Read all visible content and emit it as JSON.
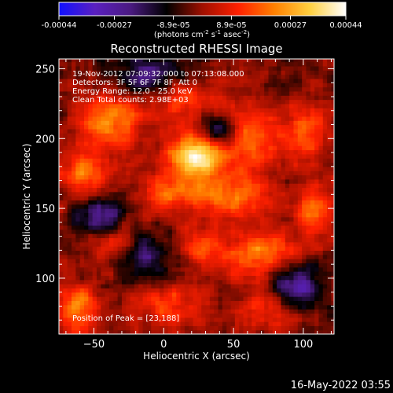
{
  "colorbar": {
    "tick_labels": [
      "-0.00044",
      "-0.00027",
      "-8.9e-05",
      "8.9e-05",
      "0.00027",
      "0.00044"
    ],
    "tick_values": [
      -0.00044,
      -0.00027,
      -8.9e-05,
      8.9e-05,
      0.00027,
      0.00044
    ],
    "range": [
      -0.00044,
      0.00044
    ],
    "unit_base": "(photons cm",
    "unit_exp1": "-2",
    "unit_mid": " s",
    "unit_exp2": "-1",
    "unit_asec": " asec",
    "unit_exp3": "-2",
    "unit_close": ")",
    "colors": [
      "#1010ff",
      "#5a20c0",
      "#4a1a80",
      "#000000",
      "#a01000",
      "#ff2000",
      "#ff8000",
      "#ffd040",
      "#ffffff"
    ]
  },
  "chart_data": {
    "type": "heatmap",
    "title": "Reconstructed RHESSI Image",
    "xlabel": "Heliocentric X (arcsec)",
    "ylabel": "Heliocentric Y (arcsec)",
    "xlim": [
      -75,
      122
    ],
    "ylim": [
      60,
      257
    ],
    "x_ticks": [
      -50,
      0,
      50,
      100
    ],
    "y_ticks": [
      100,
      150,
      200,
      250
    ],
    "x_tick_labels": [
      "−50",
      "0",
      "50",
      "100"
    ],
    "y_tick_labels": [
      "100",
      "150",
      "200",
      "250"
    ],
    "annotations": [
      "19-Nov-2012 07:09:32.000 to 07:13:08.000",
      "Detectors: 3F 5F 6F 7F 8F, Att 0",
      "Energy Range: 12.0 - 25.0 keV",
      "Clean     Total counts: 2.98E+03"
    ],
    "peak_label": "Position of Peak = [23,188]",
    "peak": [
      23,
      188
    ],
    "sources": [
      {
        "x": 23,
        "y": 188,
        "sx": 14,
        "sy": 12,
        "a": 1.0
      },
      {
        "x": 45,
        "y": 158,
        "sx": 20,
        "sy": 10,
        "a": 0.55
      },
      {
        "x": 0,
        "y": 160,
        "sx": 12,
        "sy": 9,
        "a": 0.45
      },
      {
        "x": -40,
        "y": 213,
        "sx": 16,
        "sy": 14,
        "a": 0.6
      },
      {
        "x": -55,
        "y": 175,
        "sx": 12,
        "sy": 10,
        "a": 0.45
      },
      {
        "x": 15,
        "y": 230,
        "sx": 18,
        "sy": 10,
        "a": 0.35
      },
      {
        "x": 60,
        "y": 200,
        "sx": 14,
        "sy": 16,
        "a": 0.5
      },
      {
        "x": 70,
        "y": 118,
        "sx": 18,
        "sy": 12,
        "a": 0.55
      },
      {
        "x": 28,
        "y": 122,
        "sx": 10,
        "sy": 9,
        "a": 0.4
      },
      {
        "x": -62,
        "y": 78,
        "sx": 10,
        "sy": 12,
        "a": 0.55
      },
      {
        "x": 108,
        "y": 148,
        "sx": 10,
        "sy": 12,
        "a": 0.45
      },
      {
        "x": 100,
        "y": 205,
        "sx": 12,
        "sy": 14,
        "a": 0.4
      },
      {
        "x": 5,
        "y": 80,
        "sx": 18,
        "sy": 10,
        "a": 0.35
      },
      {
        "x": 75,
        "y": 78,
        "sx": 14,
        "sy": 10,
        "a": 0.35
      },
      {
        "x": -35,
        "y": 125,
        "sx": 12,
        "sy": 10,
        "a": 0.3
      }
    ],
    "negative_regions": [
      {
        "x": -10,
        "y": 245,
        "sx": 18,
        "sy": 10,
        "a": 0.5
      },
      {
        "x": 40,
        "y": 205,
        "sx": 10,
        "sy": 8,
        "a": 0.6
      },
      {
        "x": -45,
        "y": 145,
        "sx": 12,
        "sy": 10,
        "a": 0.55
      },
      {
        "x": 95,
        "y": 95,
        "sx": 12,
        "sy": 12,
        "a": 0.6
      },
      {
        "x": -15,
        "y": 115,
        "sx": 12,
        "sy": 10,
        "a": 0.45
      }
    ]
  },
  "timestamp": "16-May-2022 03:55"
}
